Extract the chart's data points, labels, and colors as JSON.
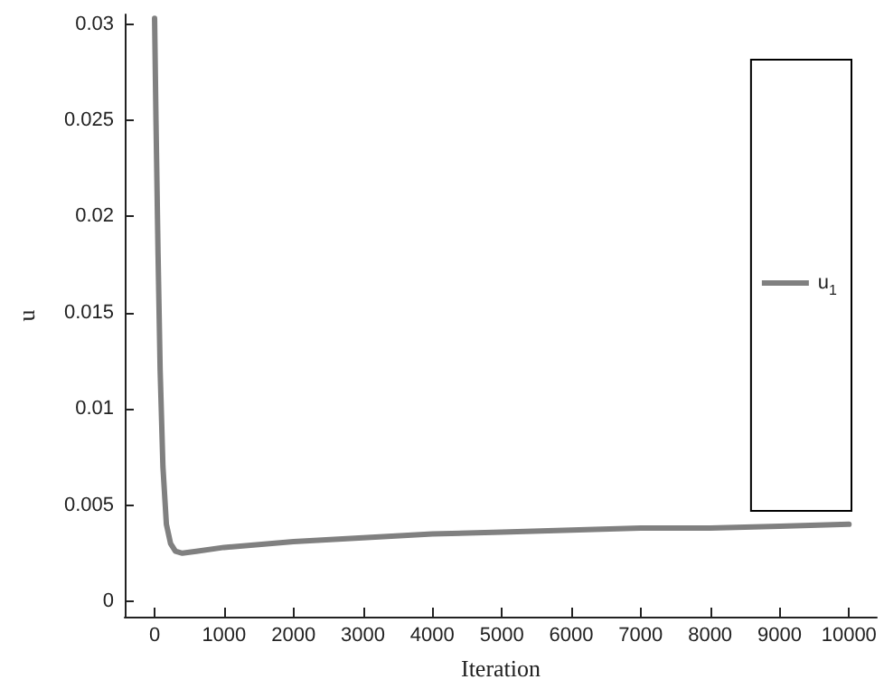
{
  "chart_data": {
    "type": "line",
    "xlabel": "Iteration",
    "ylabel": "u",
    "x": [
      0,
      20,
      50,
      80,
      120,
      170,
      230,
      300,
      400,
      600,
      1000,
      2000,
      3000,
      4000,
      5000,
      6000,
      7000,
      8000,
      9000,
      10000
    ],
    "series": [
      {
        "name": "u$_{1}$",
        "color": "#808080",
        "values": [
          0.0303,
          0.025,
          0.018,
          0.012,
          0.007,
          0.004,
          0.003,
          0.0026,
          0.0025,
          0.0026,
          0.0028,
          0.0031,
          0.0033,
          0.0035,
          0.0036,
          0.0037,
          0.0038,
          0.0038,
          0.0039,
          0.004
        ]
      }
    ],
    "xlim": [
      -430,
      10400
    ],
    "ylim": [
      -0.0008,
      0.0305
    ],
    "xticks": [
      0,
      1000,
      2000,
      3000,
      4000,
      5000,
      6000,
      7000,
      8000,
      9000,
      10000
    ],
    "yticks": [
      0,
      0.005,
      0.01,
      0.015,
      0.02,
      0.025,
      0.03
    ],
    "grid": false,
    "legend": "right",
    "marker": "none",
    "line_style": "solid"
  }
}
